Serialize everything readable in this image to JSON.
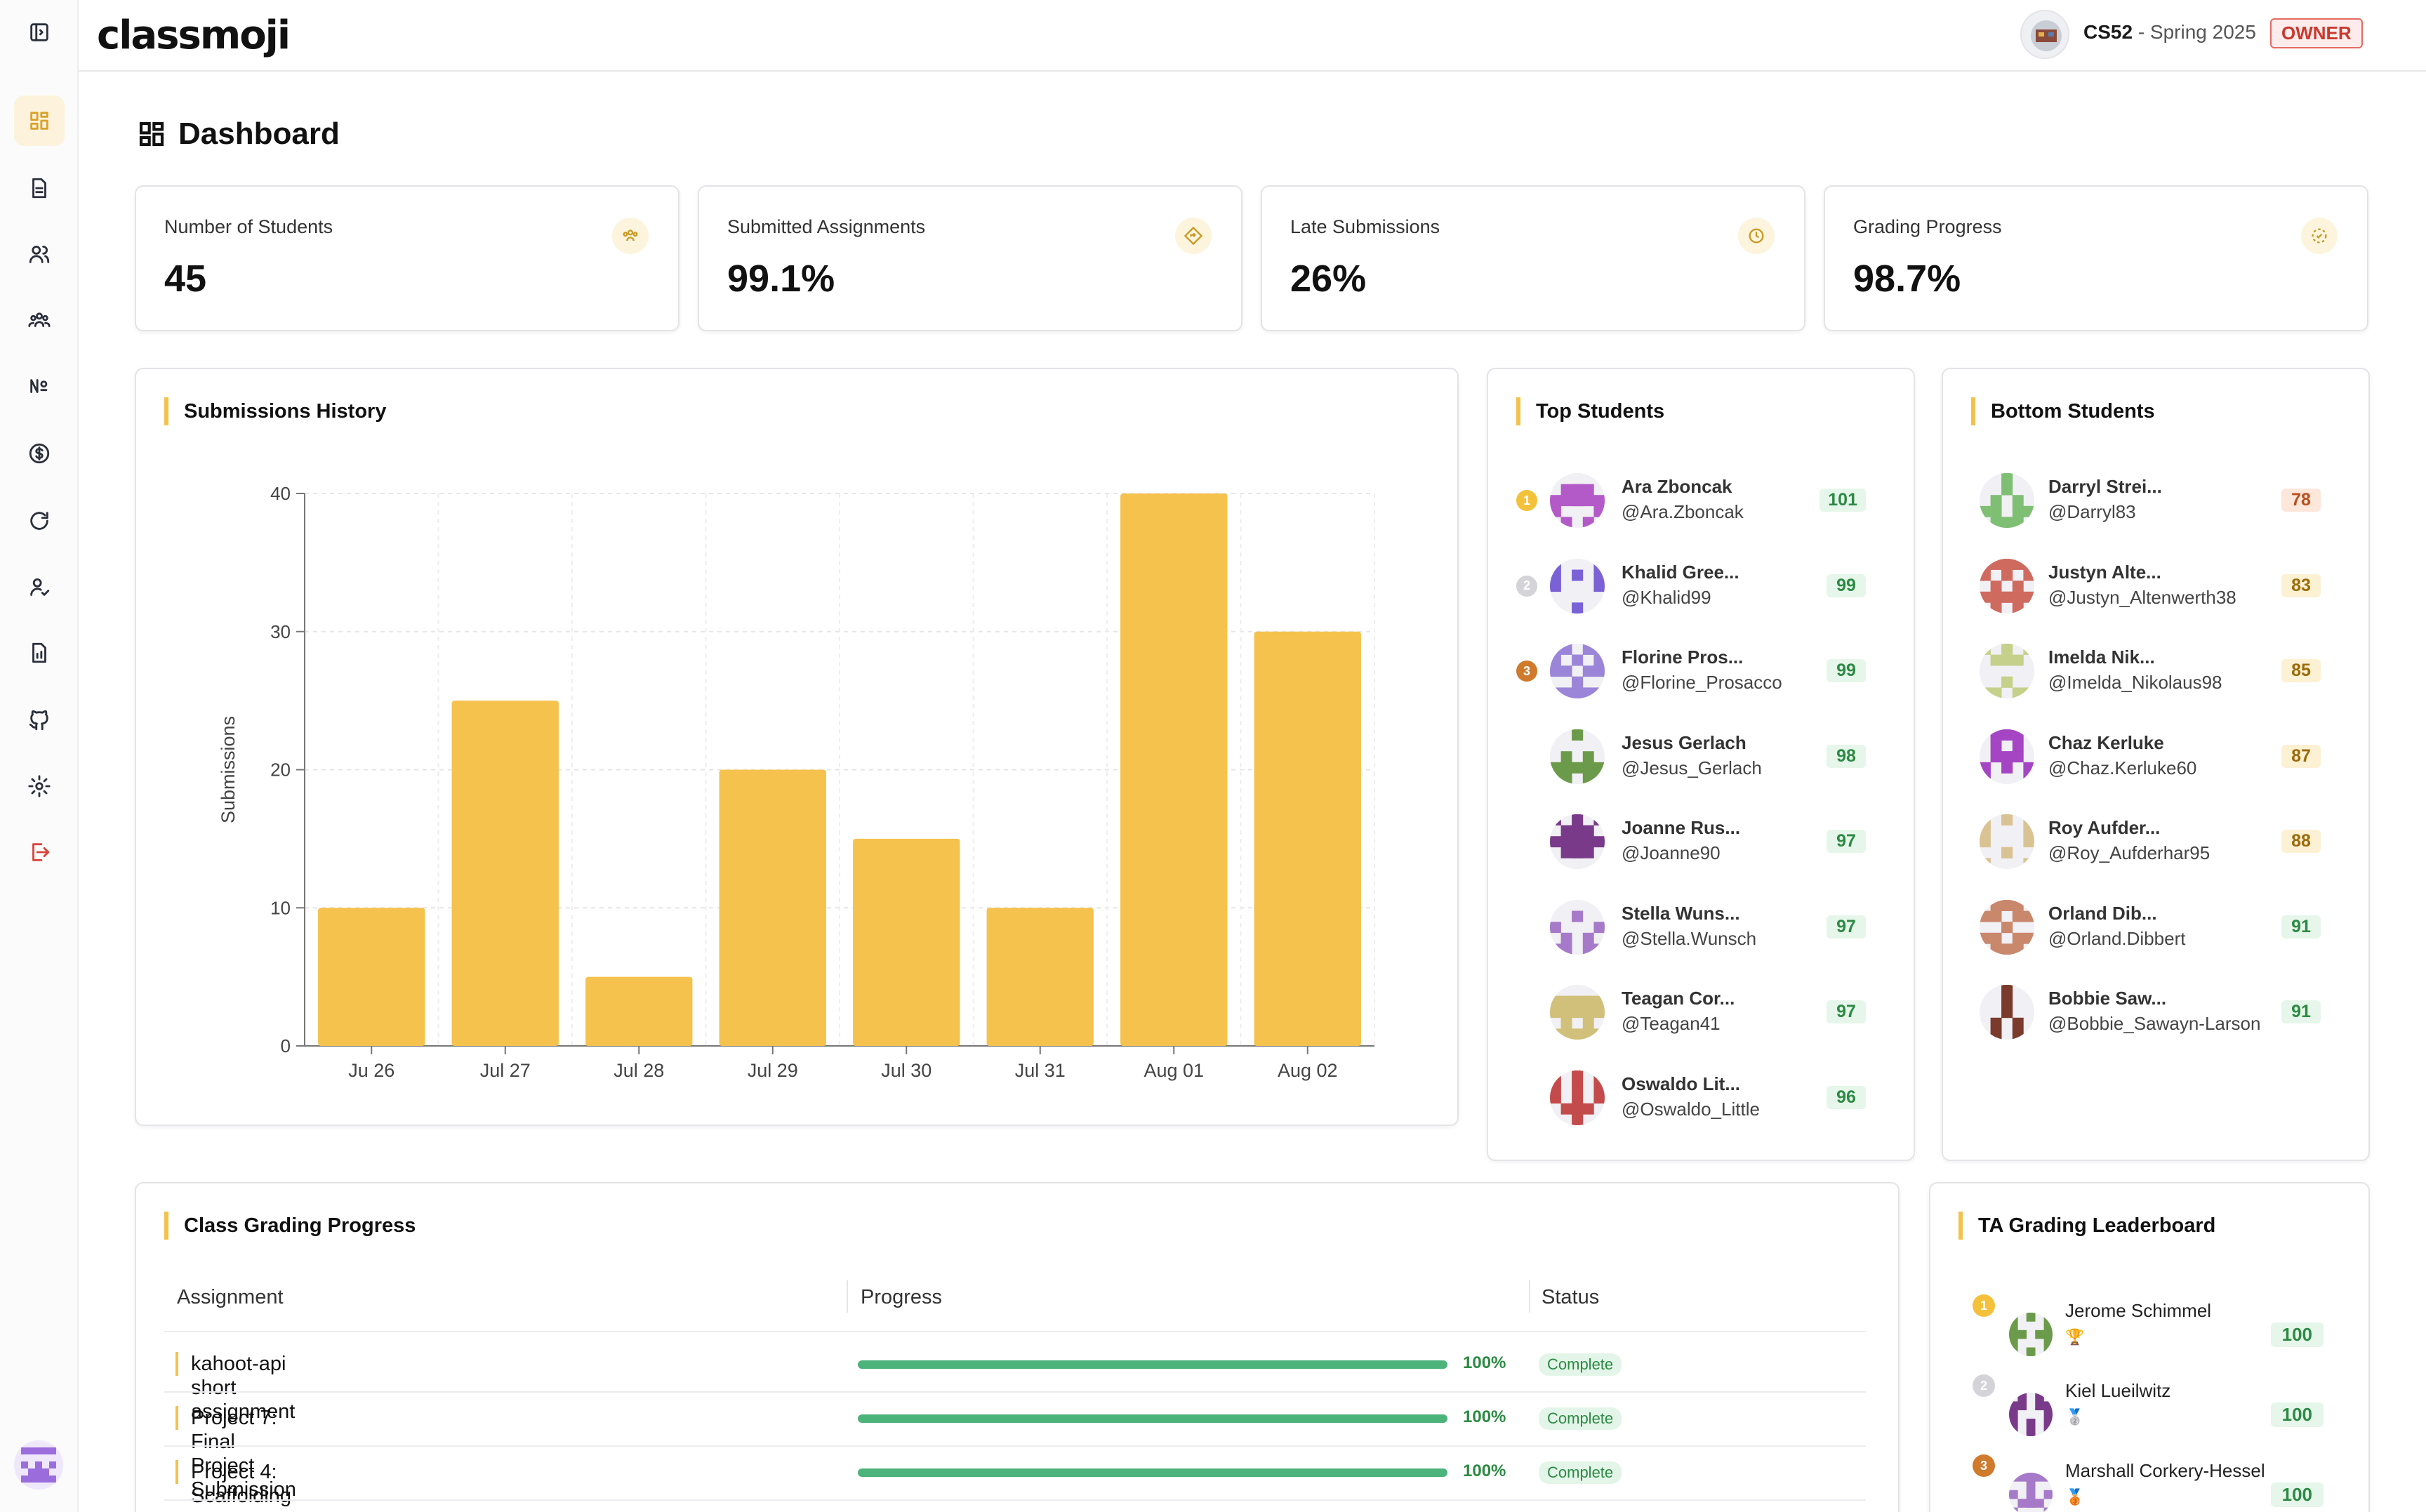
{
  "header": {
    "logo_text": "classmoji",
    "course_code": "CS52",
    "course_term": " - Spring 2025",
    "role_badge": "OWNER"
  },
  "sidebar": {
    "items": [
      {
        "icon": "dashboard-icon",
        "active": true
      },
      {
        "icon": "document-icon"
      },
      {
        "icon": "users-icon"
      },
      {
        "icon": "teams-icon"
      },
      {
        "icon": "numero-icon"
      },
      {
        "icon": "dollar-icon"
      },
      {
        "icon": "refresh-icon"
      },
      {
        "icon": "user-check-icon"
      },
      {
        "icon": "report-icon"
      },
      {
        "icon": "github-icon"
      },
      {
        "icon": "settings-icon"
      },
      {
        "icon": "logout-icon"
      }
    ]
  },
  "page": {
    "title": "Dashboard"
  },
  "stats": [
    {
      "label": "Number of Students",
      "value": "45",
      "icon": "students-icon"
    },
    {
      "label": "Submitted Assignments",
      "value": "99.1%",
      "icon": "diamond-arrow-icon"
    },
    {
      "label": "Late Submissions",
      "value": "26%",
      "icon": "clock-icon"
    },
    {
      "label": "Grading Progress",
      "value": "98.7%",
      "icon": "dashed-circle-icon"
    }
  ],
  "submissions_history": {
    "title": "Submissions History"
  },
  "chart_data": {
    "type": "bar",
    "title": "Submissions History",
    "categories": [
      "Ju 26",
      "Jul 27",
      "Jul 28",
      "Jul 29",
      "Jul 30",
      "Jul 31",
      "Aug 01",
      "Aug 02"
    ],
    "values": [
      10,
      25,
      5,
      20,
      15,
      10,
      40,
      30
    ],
    "ylabel": "Submissions",
    "xlabel": "",
    "ylim": [
      0,
      40
    ],
    "yticks": [
      0,
      10,
      20,
      30,
      40
    ],
    "grid": true,
    "color": "#f5c24e"
  },
  "top_students": {
    "title": "Top Students",
    "rows": [
      {
        "rank": "1",
        "name": "Ara Zboncak",
        "handle": "@Ara.Zboncak",
        "score": "101"
      },
      {
        "rank": "2",
        "name": "Khalid Gree...",
        "handle": "@Khalid99",
        "score": "99"
      },
      {
        "rank": "3",
        "name": "Florine Pros...",
        "handle": "@Florine_Prosacco",
        "score": "99"
      },
      {
        "rank": "",
        "name": "Jesus Gerlach",
        "handle": "@Jesus_Gerlach",
        "score": "98"
      },
      {
        "rank": "",
        "name": "Joanne Rus...",
        "handle": "@Joanne90",
        "score": "97"
      },
      {
        "rank": "",
        "name": "Stella Wuns...",
        "handle": "@Stella.Wunsch",
        "score": "97"
      },
      {
        "rank": "",
        "name": "Teagan Cor...",
        "handle": "@Teagan41",
        "score": "97"
      },
      {
        "rank": "",
        "name": "Oswaldo Lit...",
        "handle": "@Oswaldo_Little",
        "score": "96"
      }
    ]
  },
  "bottom_students": {
    "title": "Bottom Students",
    "rows": [
      {
        "name": "Darryl Strei...",
        "handle": "@Darryl83",
        "score": "78"
      },
      {
        "name": "Justyn Alte...",
        "handle": "@Justyn_Altenwerth38",
        "score": "83"
      },
      {
        "name": "Imelda Nik...",
        "handle": "@Imelda_Nikolaus98",
        "score": "85"
      },
      {
        "name": "Chaz Kerluke",
        "handle": "@Chaz.Kerluke60",
        "score": "87"
      },
      {
        "name": "Roy Aufder...",
        "handle": "@Roy_Aufderhar95",
        "score": "88"
      },
      {
        "name": "Orland Dib...",
        "handle": "@Orland.Dibbert",
        "score": "91"
      },
      {
        "name": "Bobbie Saw...",
        "handle": "@Bobbie_Sawayn-Larson",
        "score": "91"
      }
    ]
  },
  "grading_progress": {
    "title": "Class Grading Progress",
    "columns": [
      "Assignment",
      "Progress",
      "Status"
    ],
    "rows": [
      {
        "assignment": "kahoot-api short assignment",
        "progress": 1.0,
        "progress_label": "100%",
        "status": "Complete"
      },
      {
        "assignment": "Project 7: Final Project Submission",
        "progress": 1.0,
        "progress_label": "100%",
        "status": "Complete"
      },
      {
        "assignment": "Project 4: Scaffolding",
        "progress": 1.0,
        "progress_label": "100%",
        "status": "Complete"
      }
    ]
  },
  "ta_leaderboard": {
    "title": "TA Grading Leaderboard",
    "rows": [
      {
        "rank": "1",
        "name": "Jerome Schimmel",
        "trophy": "🏆",
        "score": "100"
      },
      {
        "rank": "2",
        "name": "Kiel Lueilwitz",
        "trophy": "🥈",
        "score": "100"
      },
      {
        "rank": "3",
        "name": "Marshall Corkery-Hessel",
        "trophy": "🥉",
        "score": "100"
      }
    ]
  }
}
